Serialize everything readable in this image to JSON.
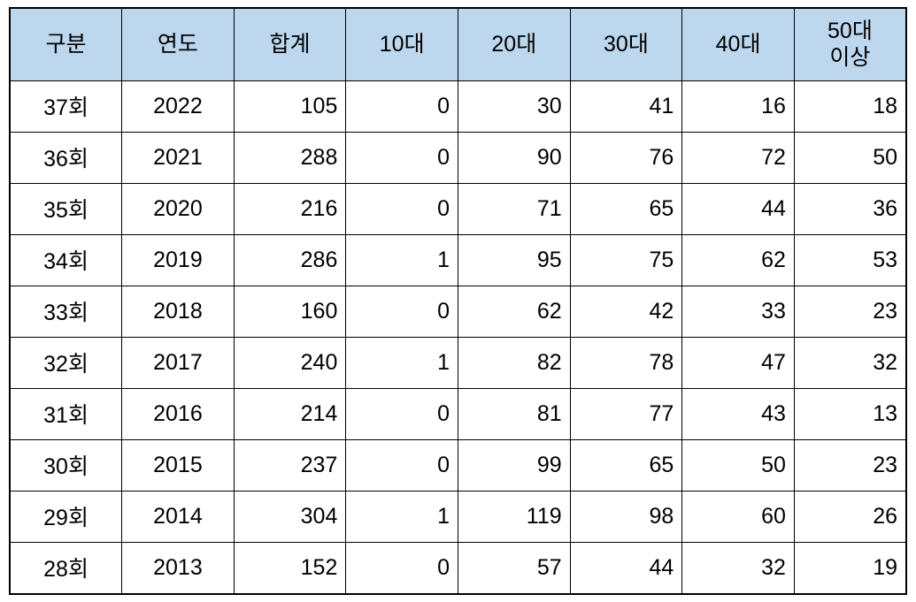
{
  "colors": {
    "header_bg": "#BDD7EE",
    "border": "#000000",
    "text": "#000000",
    "page_bg": "#FFFFFF"
  },
  "chart_data": {
    "type": "table",
    "columns": [
      "구분",
      "연도",
      "합계",
      "10대",
      "20대",
      "30대",
      "40대",
      "50대\n이상"
    ],
    "col_keys": [
      "category",
      "year",
      "total",
      "age-10s",
      "age-20s",
      "age-30s",
      "age-40s",
      "age-50s-plus"
    ],
    "col_aligns": [
      "center",
      "center",
      "right",
      "right",
      "right",
      "right",
      "right",
      "right"
    ],
    "rows": [
      [
        "37회",
        "2022",
        "105",
        "0",
        "30",
        "41",
        "16",
        "18"
      ],
      [
        "36회",
        "2021",
        "288",
        "0",
        "90",
        "76",
        "72",
        "50"
      ],
      [
        "35회",
        "2020",
        "216",
        "0",
        "71",
        "65",
        "44",
        "36"
      ],
      [
        "34회",
        "2019",
        "286",
        "1",
        "95",
        "75",
        "62",
        "53"
      ],
      [
        "33회",
        "2018",
        "160",
        "0",
        "62",
        "42",
        "33",
        "23"
      ],
      [
        "32회",
        "2017",
        "240",
        "1",
        "82",
        "78",
        "47",
        "32"
      ],
      [
        "31회",
        "2016",
        "214",
        "0",
        "81",
        "77",
        "43",
        "13"
      ],
      [
        "30회",
        "2015",
        "237",
        "0",
        "99",
        "65",
        "50",
        "23"
      ],
      [
        "29회",
        "2014",
        "304",
        "1",
        "119",
        "98",
        "60",
        "26"
      ],
      [
        "28회",
        "2013",
        "152",
        "0",
        "57",
        "44",
        "32",
        "19"
      ]
    ]
  }
}
